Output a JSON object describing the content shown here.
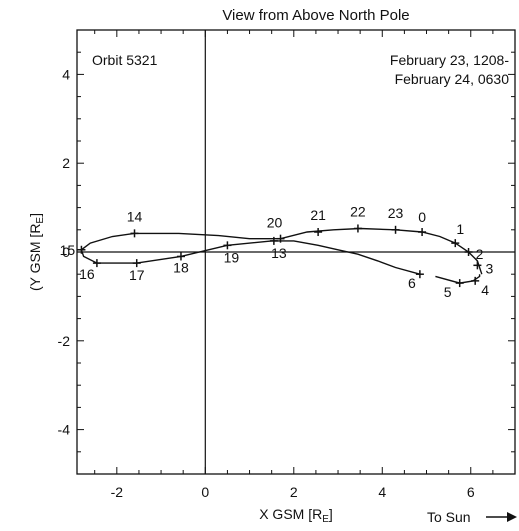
{
  "chart_data": {
    "type": "line",
    "title": "View from Above North Pole",
    "annotation_left": "Orbit 5321",
    "annotation_right": [
      "February 23, 1208-",
      "February 24, 0630"
    ],
    "xlabel": "X GSM [R",
    "xlabel_sub": "E",
    "xlabel_close": "]",
    "ylabel": "(Y GSM [R",
    "ylabel_sub": "E",
    "ylabel_close": "]",
    "sun_label": "To Sun",
    "xlim": [
      -2.9,
      7.0
    ],
    "ylim": [
      -5.0,
      5.0
    ],
    "xticks": [
      -2,
      0,
      2,
      4,
      6
    ],
    "yticks": [
      -4,
      -2,
      0,
      2,
      4
    ],
    "grid": false,
    "series": [
      {
        "values_x": [
          6.2,
          6.2,
          6.05,
          5.75,
          5.2,
          4.85,
          4.3,
          3.9,
          3.45,
          3.0,
          2.55,
          2.0,
          1.5,
          0.5,
          -0.55,
          -1.55,
          -2.45,
          -2.75,
          -2.8,
          -2.6,
          -2.1,
          -1.6,
          -0.6,
          0.3,
          1.0,
          1.7,
          2.3,
          2.9,
          3.5,
          4.3,
          4.9,
          5.3,
          5.65,
          5.95,
          6.15,
          6.25
        ],
        "values_y": [
          -0.5,
          -0.55,
          -0.65,
          -0.7,
          -0.55,
          -0.5,
          -0.35,
          -0.2,
          -0.05,
          0.05,
          0.15,
          0.25,
          0.25,
          0.15,
          -0.1,
          -0.25,
          -0.25,
          -0.1,
          0.05,
          0.2,
          0.35,
          0.42,
          0.42,
          0.37,
          0.3,
          0.3,
          0.45,
          0.5,
          0.53,
          0.5,
          0.45,
          0.35,
          0.2,
          0.0,
          -0.2,
          -0.5
        ],
        "gap_after_index": 4
      }
    ],
    "markers": [
      {
        "label": "0",
        "x": 4.9,
        "y": 0.45
      },
      {
        "label": "1",
        "x": 5.65,
        "y": 0.2
      },
      {
        "label": "2",
        "x": 5.95,
        "y": 0.0
      },
      {
        "label": "3",
        "x": 6.15,
        "y": -0.3
      },
      {
        "label": "4",
        "x": 6.1,
        "y": -0.65
      },
      {
        "label": "5",
        "x": 5.75,
        "y": -0.7
      },
      {
        "label": "6",
        "x": 4.85,
        "y": -0.5
      },
      {
        "label": "13",
        "x": 1.55,
        "y": 0.25
      },
      {
        "label": "14",
        "x": -1.6,
        "y": 0.42
      },
      {
        "label": "15",
        "x": -2.8,
        "y": 0.05
      },
      {
        "label": "16",
        "x": -2.45,
        "y": -0.25
      },
      {
        "label": "17",
        "x": -1.55,
        "y": -0.25
      },
      {
        "label": "18",
        "x": -0.55,
        "y": -0.1
      },
      {
        "label": "19",
        "x": 0.5,
        "y": 0.15
      },
      {
        "label": "20",
        "x": 1.7,
        "y": 0.3
      },
      {
        "label": "21",
        "x": 2.55,
        "y": 0.45
      },
      {
        "label": "22",
        "x": 3.45,
        "y": 0.53
      },
      {
        "label": "23",
        "x": 4.3,
        "y": 0.5
      }
    ]
  }
}
